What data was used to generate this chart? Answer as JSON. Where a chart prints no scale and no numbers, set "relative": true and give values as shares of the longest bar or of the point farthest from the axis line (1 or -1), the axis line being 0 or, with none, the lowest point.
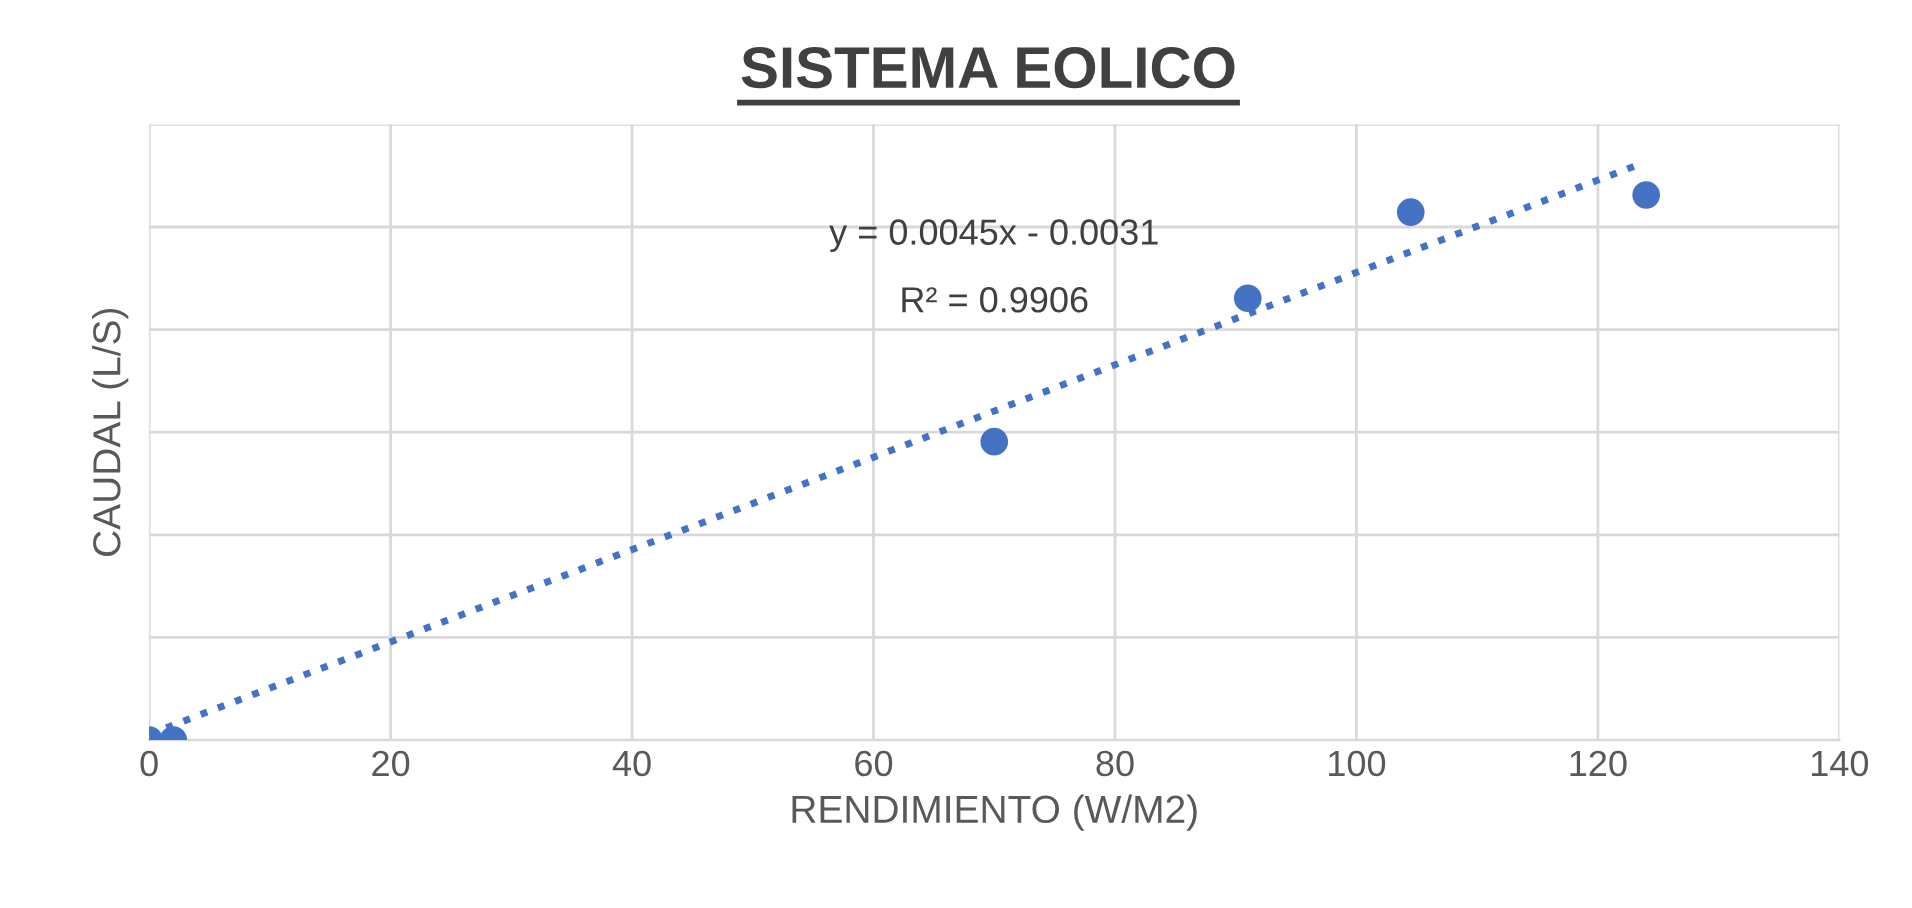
{
  "chart_data": {
    "type": "scatter",
    "title": "SISTEMA EOLICO",
    "xlabel": "RENDIMIENTO (W/M2)",
    "ylabel": "CAUDAL (L/S)",
    "relative": true,
    "xlim": [
      0,
      140
    ],
    "xticks": [
      0,
      20,
      40,
      60,
      80,
      100,
      120,
      140
    ],
    "grid": true,
    "marker": "circle",
    "annotations": [
      "y = 0.0045x - 0.0031",
      "R² = 0.9906"
    ],
    "series": [
      {
        "color": "#4472c4",
        "x": [
          0,
          2,
          70,
          91,
          104.5,
          124
        ],
        "values": [
          0,
          0,
          0.52,
          0.77,
          0.92,
          0.95
        ]
      },
      {
        "type": "line",
        "line_style": "dotted",
        "marker": "none",
        "color": "#4472c4",
        "x": [
          0,
          123
        ],
        "values": [
          0.01,
          1
        ]
      }
    ]
  }
}
